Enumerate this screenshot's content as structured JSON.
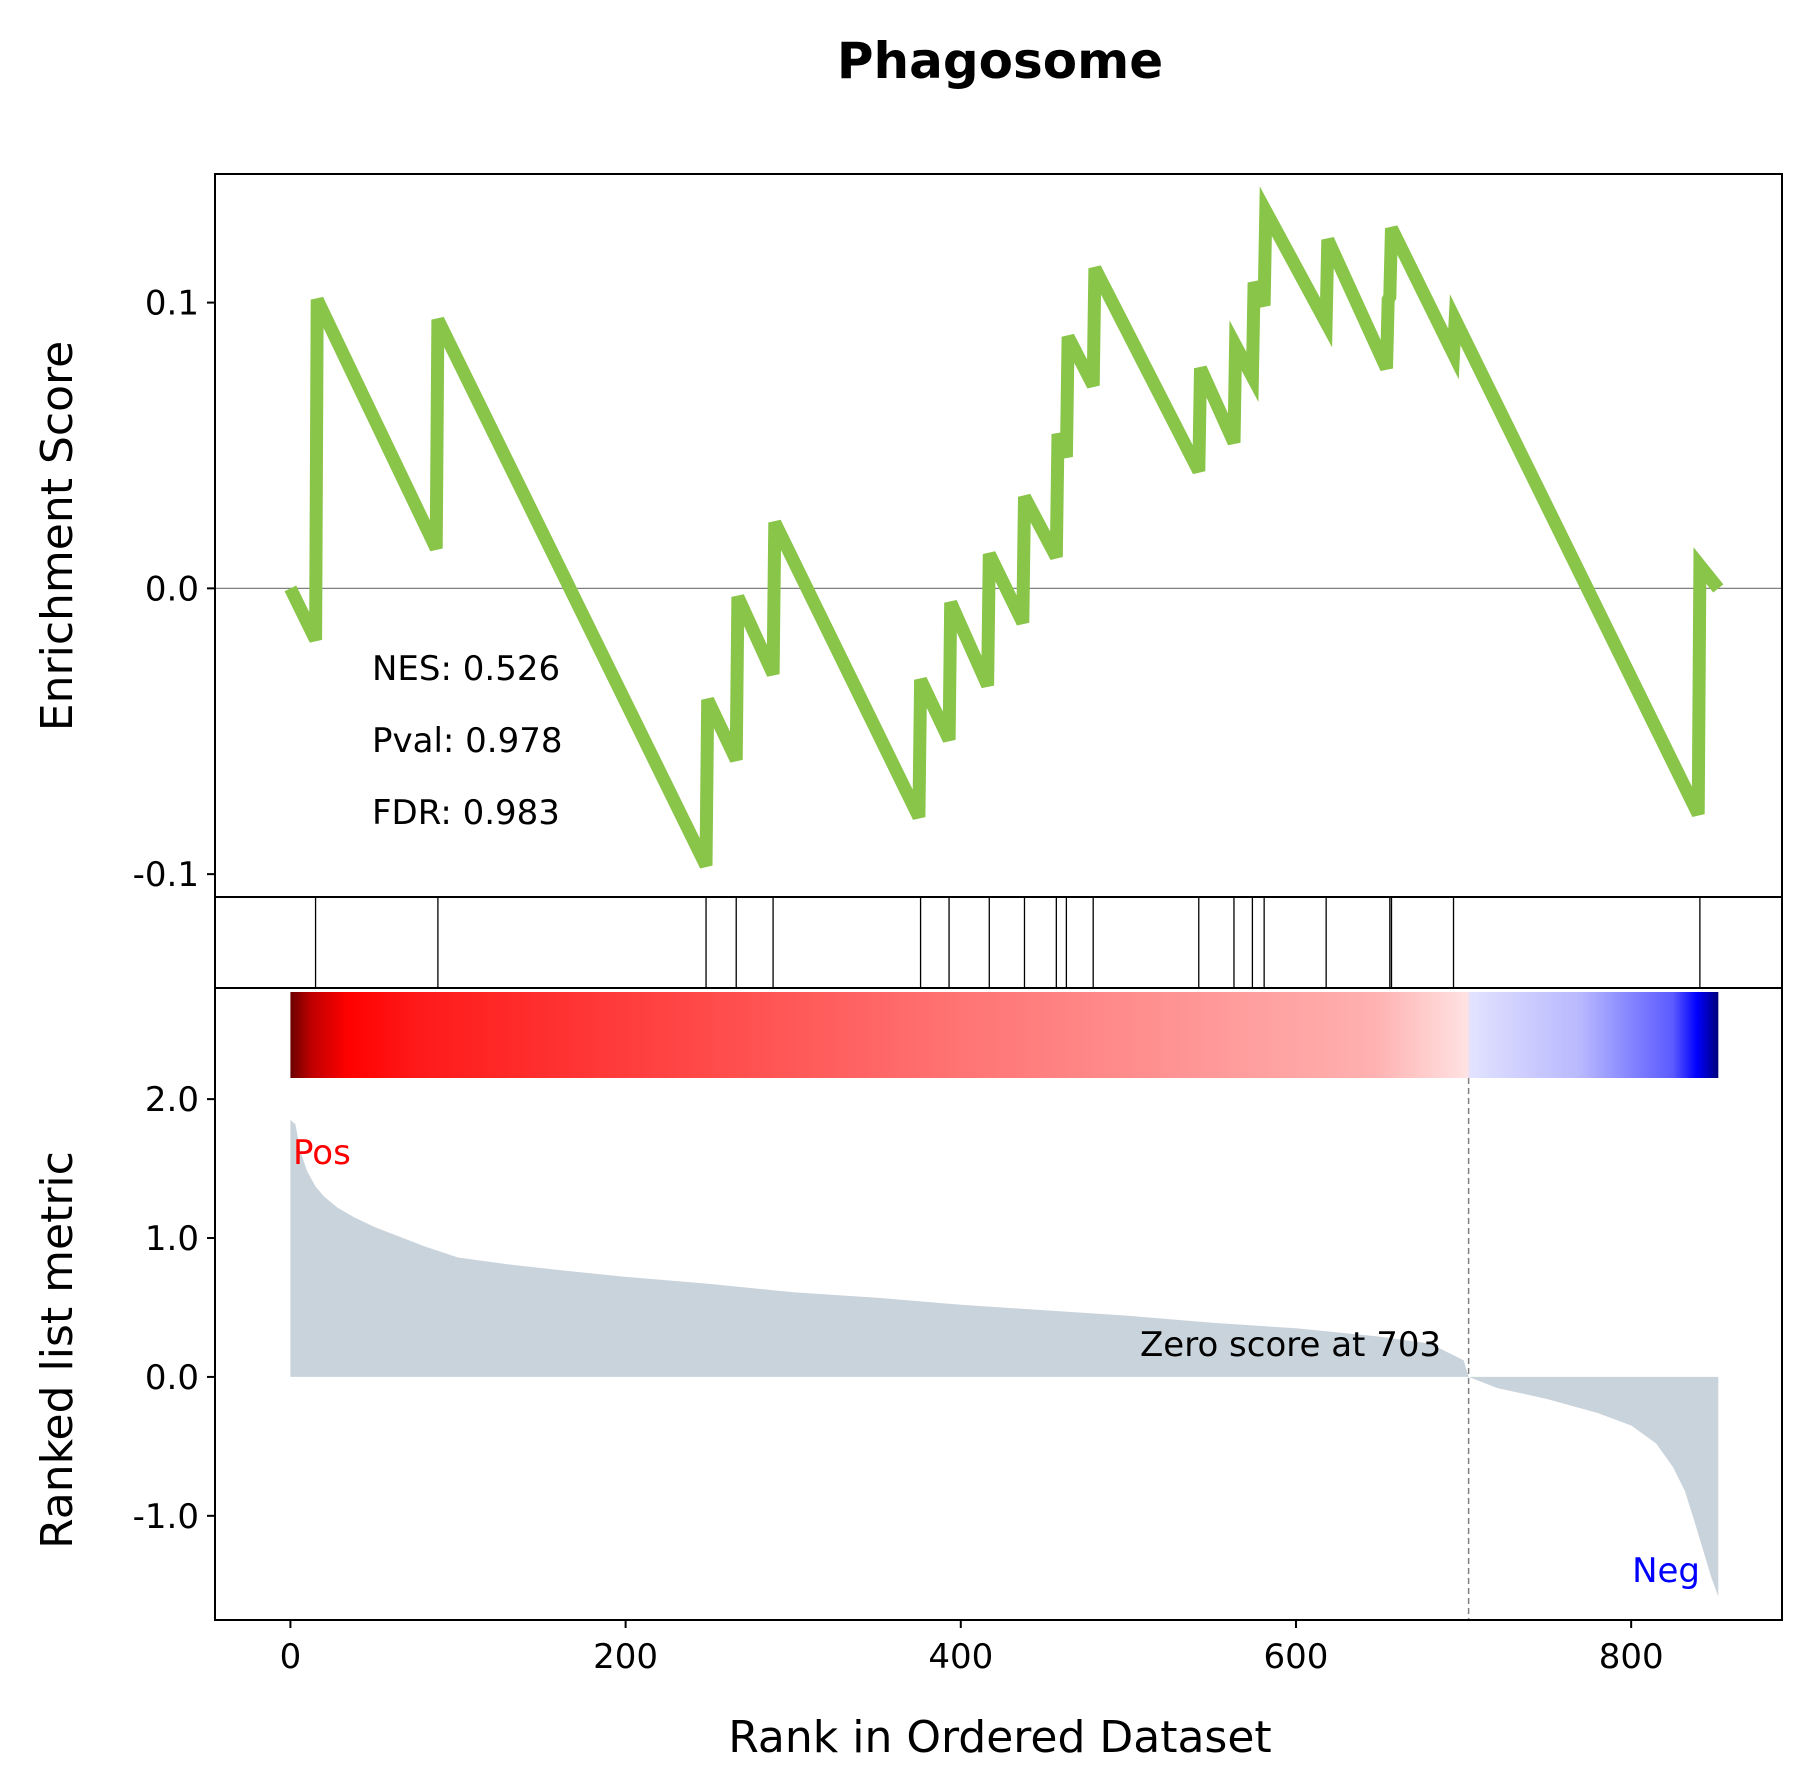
{
  "chart_data": {
    "type": "line",
    "title": "Phagosome",
    "xlabel": "Rank in Ordered Dataset",
    "xlim": [
      -45,
      890
    ],
    "xticks": [
      0,
      200,
      400,
      600,
      800
    ],
    "n_genes": 853,
    "colors": {
      "es_line": "#88c548",
      "metric_fill": "#c9d3dc",
      "pos_label": "#ff0000",
      "neg_label": "#0000ff",
      "zero_line": "#808080"
    },
    "es": {
      "ylabel": "Enrichment Score",
      "ylim": [
        -0.108,
        0.145
      ],
      "yticks": [
        -0.1,
        0.0,
        0.1
      ],
      "ytick_labels": [
        "-0.1",
        "0.0",
        "0.1"
      ],
      "points": [
        [
          0,
          0.0
        ],
        [
          15,
          -0.018
        ],
        [
          16,
          0.101
        ],
        [
          87,
          0.014
        ],
        [
          88,
          0.094
        ],
        [
          248,
          -0.097
        ],
        [
          249,
          -0.039
        ],
        [
          266,
          -0.06
        ],
        [
          267,
          -0.003
        ],
        [
          288,
          -0.03
        ],
        [
          289,
          0.023
        ],
        [
          375,
          -0.08
        ],
        [
          376,
          -0.032
        ],
        [
          393,
          -0.053
        ],
        [
          394,
          -0.005
        ],
        [
          416,
          -0.034
        ],
        [
          417,
          0.012
        ],
        [
          437,
          -0.012
        ],
        [
          438,
          0.032
        ],
        [
          457,
          0.011
        ],
        [
          458,
          0.054
        ],
        [
          463,
          0.046
        ],
        [
          464,
          0.088
        ],
        [
          479,
          0.071
        ],
        [
          480,
          0.112
        ],
        [
          542,
          0.041
        ],
        [
          543,
          0.077
        ],
        [
          563,
          0.051
        ],
        [
          564,
          0.085
        ],
        [
          574,
          0.074
        ],
        [
          575,
          0.107
        ],
        [
          581,
          0.099
        ],
        [
          582,
          0.132
        ],
        [
          618,
          0.093
        ],
        [
          619,
          0.122
        ],
        [
          654,
          0.077
        ],
        [
          655,
          0.101
        ],
        [
          656,
          0.102
        ],
        [
          657,
          0.126
        ],
        [
          694,
          0.082
        ],
        [
          695,
          0.094
        ],
        [
          840,
          -0.079
        ],
        [
          841,
          0.008
        ],
        [
          852,
          0.0
        ]
      ],
      "annotations": [
        {
          "label": "NES",
          "value": "NES: 0.526"
        },
        {
          "label": "Pval",
          "value": "Pval: 0.978"
        },
        {
          "label": "FDR",
          "value": "FDR: 0.983"
        }
      ]
    },
    "hits": [
      15,
      88,
      248,
      266,
      288,
      376,
      393,
      417,
      438,
      457,
      463,
      479,
      542,
      563,
      574,
      581,
      618,
      656,
      657,
      694,
      841
    ],
    "metric": {
      "ylabel": "Ranked list metric",
      "ylim": [
        -1.75,
        2.8
      ],
      "yticks": [
        -1.0,
        0.0,
        1.0,
        2.0
      ],
      "ytick_labels": [
        "-1.0",
        "0.0",
        "1.0",
        "2.0"
      ],
      "curve": [
        [
          0,
          1.85
        ],
        [
          3,
          1.82
        ],
        [
          6,
          1.62
        ],
        [
          10,
          1.48
        ],
        [
          15,
          1.37
        ],
        [
          20,
          1.3
        ],
        [
          28,
          1.22
        ],
        [
          38,
          1.15
        ],
        [
          50,
          1.08
        ],
        [
          65,
          1.01
        ],
        [
          80,
          0.94
        ],
        [
          100,
          0.86
        ],
        [
          130,
          0.81
        ],
        [
          160,
          0.77
        ],
        [
          200,
          0.72
        ],
        [
          250,
          0.67
        ],
        [
          300,
          0.61
        ],
        [
          350,
          0.57
        ],
        [
          400,
          0.52
        ],
        [
          450,
          0.48
        ],
        [
          500,
          0.44
        ],
        [
          550,
          0.39
        ],
        [
          600,
          0.35
        ],
        [
          650,
          0.29
        ],
        [
          680,
          0.24
        ],
        [
          700,
          0.12
        ],
        [
          703,
          0.0
        ],
        [
          720,
          -0.08
        ],
        [
          750,
          -0.16
        ],
        [
          780,
          -0.26
        ],
        [
          800,
          -0.35
        ],
        [
          815,
          -0.48
        ],
        [
          825,
          -0.65
        ],
        [
          832,
          -0.82
        ],
        [
          838,
          -1.05
        ],
        [
          843,
          -1.25
        ],
        [
          848,
          -1.45
        ],
        [
          852,
          -1.58
        ]
      ],
      "zero_crossing": 703,
      "zero_label": "Zero score at 703",
      "pos_label": "Pos",
      "neg_label": "Neg"
    }
  }
}
